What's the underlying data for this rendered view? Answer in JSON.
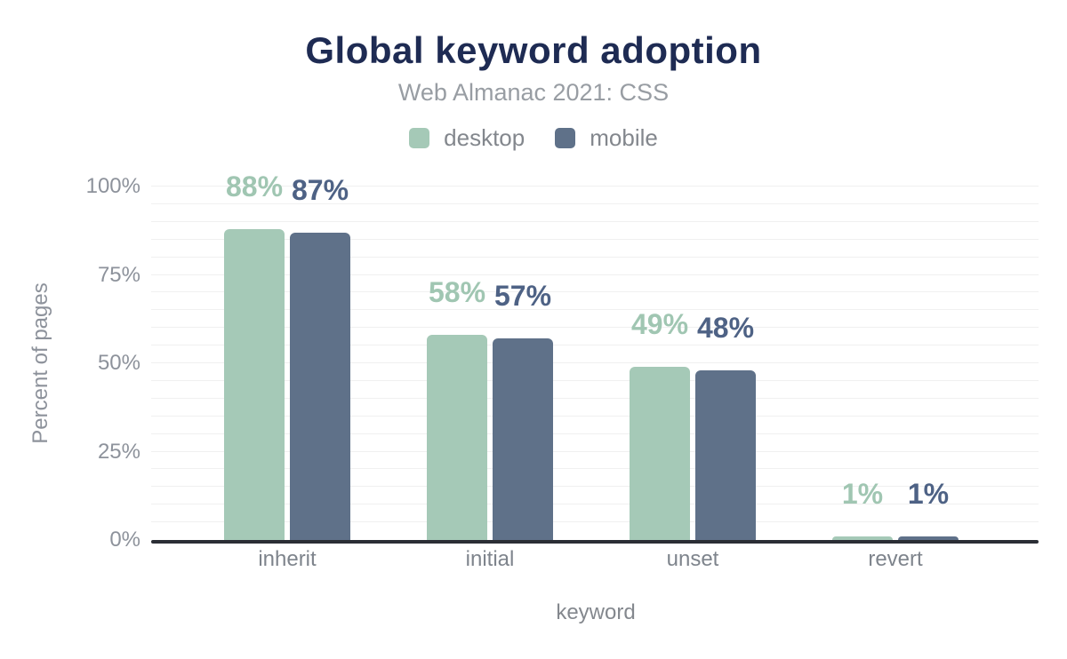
{
  "chart_data": {
    "type": "bar",
    "title": "Global keyword adoption",
    "subtitle": "Web Almanac 2021: CSS",
    "categories": [
      "inherit",
      "initial",
      "unset",
      "revert"
    ],
    "series": [
      {
        "name": "desktop",
        "values": [
          88,
          58,
          49,
          1
        ],
        "color": "#a5c9b7",
        "label_color": "#a0c6b2"
      },
      {
        "name": "mobile",
        "values": [
          87,
          57,
          48,
          1
        ],
        "color": "#5f7189",
        "label_color": "#4e6285"
      }
    ],
    "value_suffix": "%",
    "xlabel": "keyword",
    "ylabel": "Percent of pages",
    "ylim": [
      0,
      100
    ],
    "yticks": [
      0,
      25,
      50,
      75,
      100
    ],
    "ytick_suffix": "%",
    "grid": {
      "minor_step": 5,
      "color": "#f0f0f0",
      "visible": true
    },
    "legend_position": "top",
    "colors": {
      "title": "#1e2b53",
      "subtitle": "#989da3",
      "axis_line": "#2b2e35",
      "tick_text": "#8d929b"
    }
  }
}
